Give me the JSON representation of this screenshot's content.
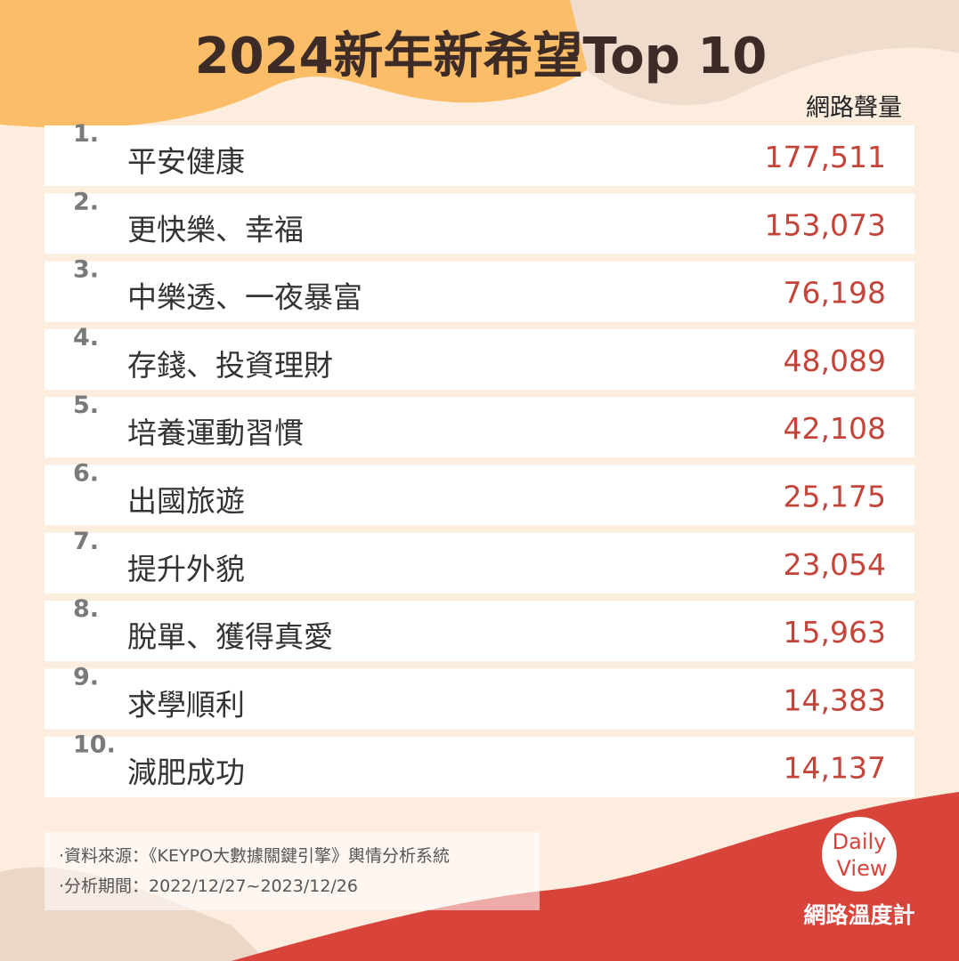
{
  "header": {
    "title": "2024新年新希望Top 10",
    "column_header": "網路聲量"
  },
  "table": {
    "rows": [
      [
        "1.",
        "平安健康",
        "177,511"
      ],
      [
        "2.",
        "更快樂、幸福",
        "153,073"
      ],
      [
        "3.",
        "中樂透、一夜暴富",
        "76,198"
      ],
      [
        "4.",
        "存錢、投資理財",
        "48,089"
      ],
      [
        "5.",
        "培養運動習慣",
        "42,108"
      ],
      [
        "6.",
        "出國旅遊",
        "25,175"
      ],
      [
        "7.",
        "提升外貌",
        "23,054"
      ],
      [
        "8.",
        "脫單、獲得真愛",
        "15,963"
      ],
      [
        "9.",
        "求學順利",
        "14,383"
      ],
      [
        "10.",
        "減肥成功",
        "14,137"
      ]
    ]
  },
  "footer": {
    "notes": [
      "‧資料來源：《KEYPO大數據關鍵引擎》輿情分析系統",
      "‧分析期間：2022/12/27~2023/12/26"
    ]
  },
  "logo": {
    "line1": "Daily",
    "line2": "View",
    "brand": "網路溫度計"
  }
}
